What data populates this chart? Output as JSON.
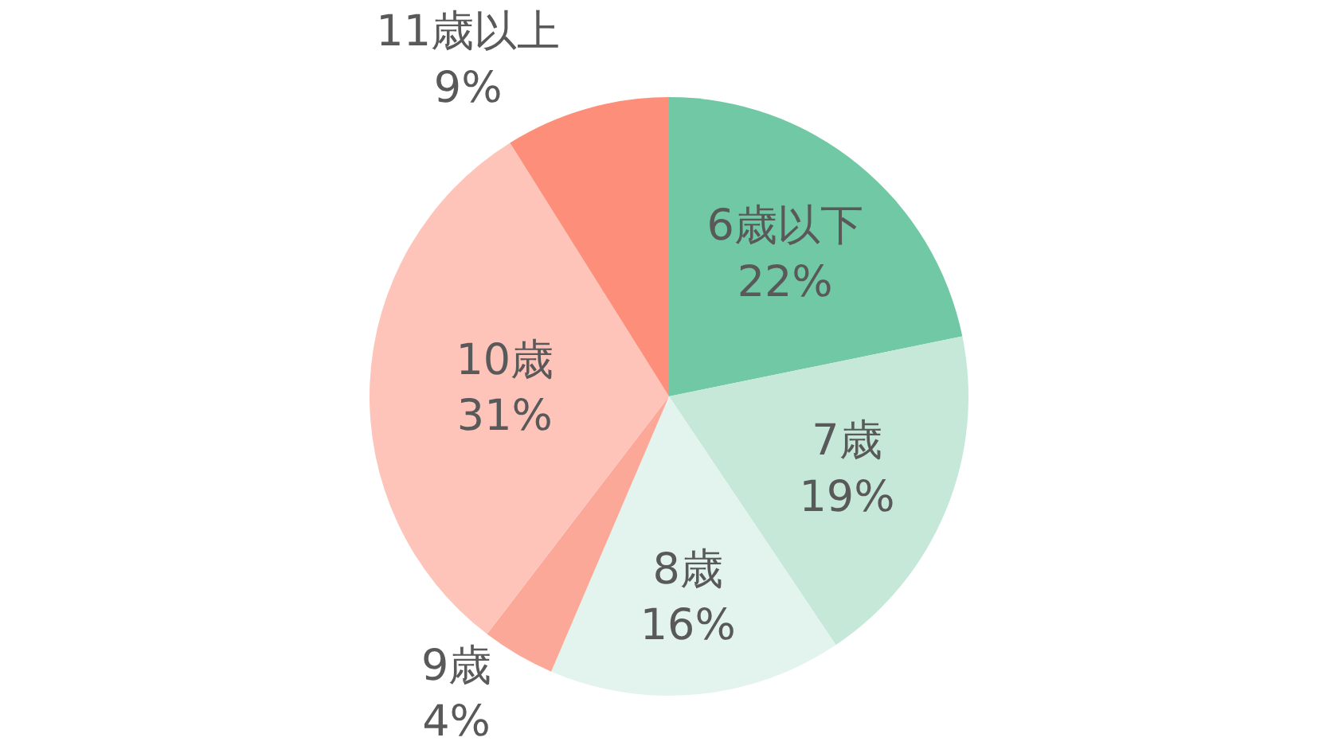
{
  "chart_data": {
    "type": "pie",
    "categories": [
      "6歳以下",
      "7歳",
      "8歳",
      "9歳",
      "10歳",
      "11歳以上"
    ],
    "values": [
      22,
      19,
      16,
      4,
      31,
      9
    ],
    "value_labels": [
      "22%",
      "19%",
      "16%",
      "4%",
      "31%",
      "9%"
    ],
    "colors": [
      "#70c8a4",
      "#c5e8d9",
      "#e2f4ed",
      "#fca898",
      "#fec4ba",
      "#fd8f7a"
    ],
    "legend": false
  }
}
